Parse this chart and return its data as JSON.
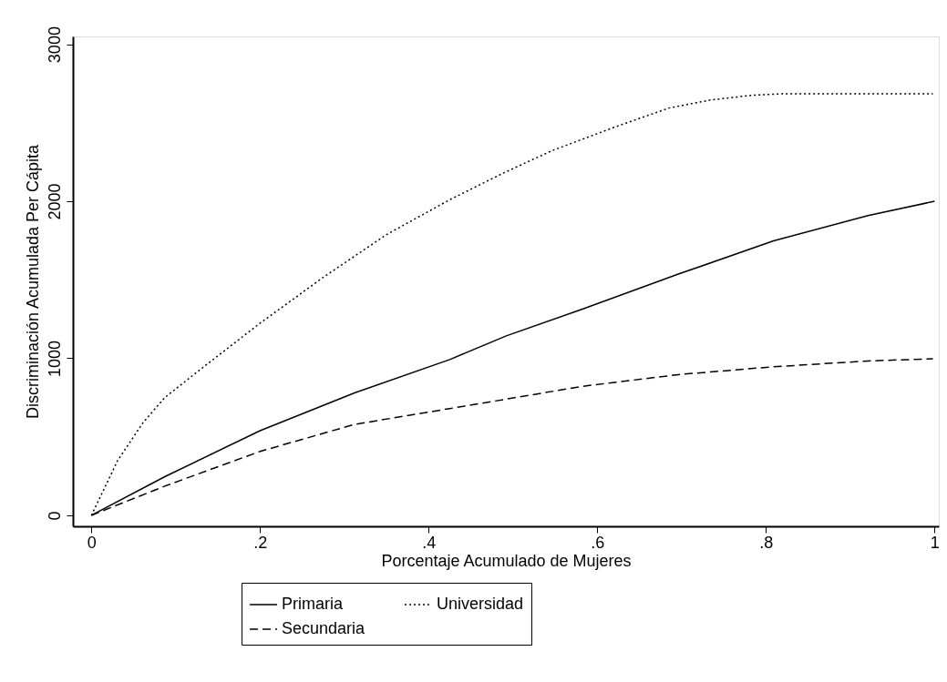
{
  "chart_data": {
    "type": "line",
    "xlabel": "Porcentaje Acumulado de Mujeres",
    "ylabel": "Discriminación Acumulada Per Cápita",
    "xlim": [
      -0.022,
      1.005
    ],
    "ylim": [
      -70,
      3050
    ],
    "xticks": [
      0,
      {
        "value": 0.2,
        "label": ".2"
      },
      {
        "value": 0.4,
        "label": ".4"
      },
      {
        "value": 0.6,
        "label": ".6"
      },
      {
        "value": 0.8,
        "label": ".8"
      },
      1
    ],
    "yticks": [
      0,
      1000,
      2000,
      3000
    ],
    "grid": false,
    "legend": "bottom",
    "series": [
      {
        "name": "Primaria",
        "color": "#000000",
        "line_style": "solid",
        "x": [
          0,
          0.087,
          0.2,
          0.312,
          0.425,
          0.492,
          0.583,
          0.696,
          0.809,
          0.921,
          1.0
        ],
        "values": [
          0,
          246,
          539,
          780,
          992,
          1143,
          1315,
          1536,
          1748,
          1909,
          2000
        ]
      },
      {
        "name": "Secundaria",
        "color": "#000000",
        "line_style": "dashed",
        "x": [
          0,
          0.087,
          0.2,
          0.312,
          0.425,
          0.492,
          0.583,
          0.696,
          0.809,
          0.921,
          0.998
        ],
        "values": [
          0,
          186,
          407,
          579,
          680,
          740,
          822,
          896,
          946,
          983,
          997
        ]
      },
      {
        "name": "Universidad",
        "color": "#000000",
        "line_style": "dotted",
        "x": [
          0,
          0.031,
          0.061,
          0.087,
          0.132,
          0.2,
          0.275,
          0.35,
          0.425,
          0.489,
          0.546,
          0.621,
          0.685,
          0.734,
          0.783,
          0.82,
          0.998
        ],
        "values": [
          0,
          348,
          589,
          750,
          941,
          1224,
          1516,
          1788,
          2010,
          2181,
          2322,
          2473,
          2594,
          2645,
          2675,
          2685,
          2685
        ]
      }
    ]
  }
}
